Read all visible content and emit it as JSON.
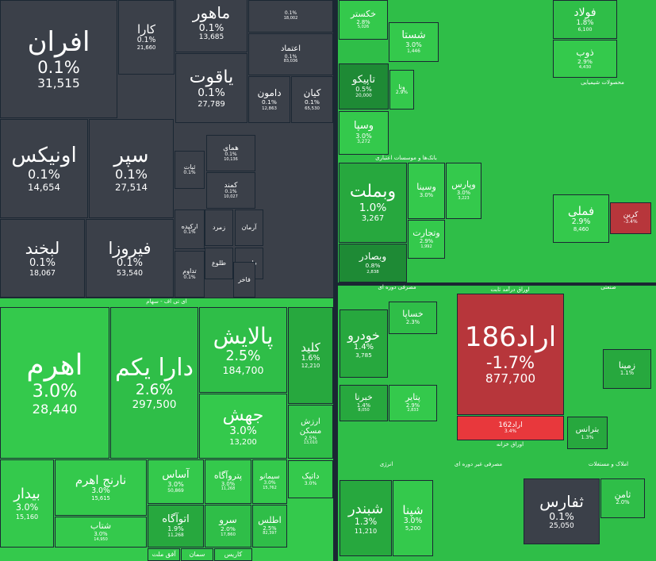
{
  "sections": [
    {
      "label": "ای تی اف - سهام"
    },
    {
      "label": "اوراق درآمد ثابت"
    },
    {
      "label": "مصرفی دوره ای"
    },
    {
      "label": "صنعتی"
    },
    {
      "label": "انرژی"
    },
    {
      "label": "مصرفی غیر دوره ای"
    },
    {
      "label": "املاک و مستغلات"
    },
    {
      "label": "بانک‌ها و موسسات اعتباری"
    },
    {
      "label": "محصولات شیمیایی"
    },
    {
      "label": "اوراق خزانه"
    }
  ],
  "tiles": [
    {
      "name": "افران",
      "change": "0.1%",
      "value": "31,515",
      "color": "#3b4049"
    },
    {
      "name": "کارا",
      "change": "0.1%",
      "value": "21,660",
      "color": "#3b4049"
    },
    {
      "name": "ماهور",
      "change": "0.1%",
      "value": "13,685",
      "color": "#3b4049"
    },
    {
      "change": "0.1%",
      "value": "18,002",
      "color": "#3b4049"
    },
    {
      "name": "اعتماد",
      "change": "0.1%",
      "value": "83,036",
      "color": "#3b4049"
    },
    {
      "name": "یاقوت",
      "change": "0.1%",
      "value": "27,789",
      "color": "#3b4049"
    },
    {
      "name": "دامون",
      "change": "0.1%",
      "value": "12,863",
      "color": "#3b4049"
    },
    {
      "name": "کیان",
      "change": "0.1%",
      "value": "65,530",
      "color": "#3b4049"
    },
    {
      "name": "اونیکس",
      "change": "0.1%",
      "value": "14,654",
      "color": "#3b4049"
    },
    {
      "name": "سپر",
      "change": "0.1%",
      "value": "27,514",
      "color": "#3b4049"
    },
    {
      "name": "لبخند",
      "change": "0.1%",
      "value": "18,067",
      "color": "#3b4049"
    },
    {
      "name": "فیروزا",
      "change": "0.1%",
      "value": "53,540",
      "color": "#3b4049"
    },
    {
      "name": "همای",
      "change": "0.1%",
      "value": "10,136",
      "color": "#3b4049"
    },
    {
      "name": "کمند",
      "change": "0.1%",
      "value": "10,027",
      "color": "#3b4049"
    },
    {
      "name": "ثبات",
      "change": "0.1%",
      "color": "#3b4049"
    },
    {
      "name": "ارکیده",
      "change": "0.1%",
      "color": "#3b4049"
    },
    {
      "name": "زمرد",
      "color": "#3b4049"
    },
    {
      "name": "آرمان",
      "color": "#3b4049"
    },
    {
      "name": "تداوم",
      "change": "0.1%",
      "color": "#3b4049"
    },
    {
      "name": "طلوع",
      "color": "#3b4049"
    },
    {
      "name": "طوبی",
      "color": "#3b4049"
    },
    {
      "name": "فاخر",
      "color": "#3b4049"
    },
    {
      "name": "اهرم",
      "change": "3.0%",
      "value": "28,440",
      "color": "#34c94c"
    },
    {
      "name": "دارا یکم",
      "change": "2.6%",
      "value": "297,500",
      "color": "#2fbe48"
    },
    {
      "name": "پالایش",
      "change": "2.5%",
      "value": "184,700",
      "color": "#2fbe48"
    },
    {
      "name": "جهش",
      "change": "3.0%",
      "value": "13,200",
      "color": "#34c94c"
    },
    {
      "name": "کلید",
      "change": "1.6%",
      "value": "12,210",
      "color": "#27a83e"
    },
    {
      "name": "ارزش مسکن",
      "change": "2.5%",
      "value": "13,010",
      "color": "#2fbe48"
    },
    {
      "name": "بیدار",
      "change": "3.0%",
      "value": "15,160",
      "color": "#34c94c"
    },
    {
      "name": "نارنج اهرم",
      "change": "3.0%",
      "value": "15,615",
      "color": "#34c94c"
    },
    {
      "name": "شتاب",
      "change": "3.0%",
      "value": "14,950",
      "color": "#34c94c"
    },
    {
      "name": "آساس",
      "change": "3.0%",
      "value": "50,869",
      "color": "#34c94c"
    },
    {
      "name": "پتروآگاه",
      "change": "3.0%",
      "value": "11,268",
      "color": "#34c94c"
    },
    {
      "name": "سیمانو",
      "change": "3.0%",
      "value": "15,762",
      "color": "#34c94c"
    },
    {
      "name": "اتوآگاه",
      "change": "1.9%",
      "value": "11,268",
      "color": "#27a83e"
    },
    {
      "name": "سرو",
      "change": "2.0%",
      "value": "17,860",
      "color": "#2fbe48"
    },
    {
      "name": "اطلس",
      "change": "2.5%",
      "value": "82,397",
      "color": "#2fbe48"
    },
    {
      "name": "داتیک",
      "change": "3.0%",
      "color": "#34c94c"
    },
    {
      "name": "آفق ملت",
      "color": "#34c94c"
    },
    {
      "name": "سمان",
      "color": "#34c94c"
    },
    {
      "name": "کاریس",
      "color": "#34c94c"
    },
    {
      "name": "خکستر",
      "change": "2.8%",
      "value": "5,026",
      "color": "#34c94c"
    },
    {
      "name": "شستا",
      "change": "3.0%",
      "value": "1,446",
      "color": "#34c94c"
    },
    {
      "name": "تاپیکو",
      "change": "0.5%",
      "value": "20,000",
      "color": "#1e8a35"
    },
    {
      "name": "ونا",
      "change": "2.9%",
      "color": "#34c94c"
    },
    {
      "name": "وسپا",
      "change": "3.0%",
      "value": "3,272",
      "color": "#34c94c"
    },
    {
      "name": "وبملت",
      "change": "1.0%",
      "value": "3,267",
      "color": "#27a83e"
    },
    {
      "name": "وبصادر",
      "change": "0.8%",
      "value": "2,838",
      "color": "#1e8a35"
    },
    {
      "name": "وسینا",
      "change": "3.0%",
      "color": "#34c94c"
    },
    {
      "name": "وتجارت",
      "change": "2.9%",
      "value": "1,992",
      "color": "#34c94c"
    },
    {
      "name": "وپارس",
      "change": "3.0%",
      "value": "3,223",
      "color": "#34c94c"
    },
    {
      "name": "فولاد",
      "change": "1.8%",
      "value": "6,100",
      "color": "#2fbe48"
    },
    {
      "name": "ذوب",
      "change": "2.9%",
      "value": "4,430",
      "color": "#34c94c"
    },
    {
      "name": "فملی",
      "change": "2.9%",
      "value": "8,460",
      "color": "#34c94c"
    },
    {
      "name": "کرین",
      "change": "-3.4%",
      "color": "#b7363b"
    },
    {
      "name": "اراد186",
      "change": "-1.7%",
      "value": "877,700",
      "color": "#b7363b"
    },
    {
      "name": "اراد162",
      "change": "3.4%",
      "color": "#e8383c"
    },
    {
      "name": "خودرو",
      "change": "1.4%",
      "value": "3,785",
      "color": "#27a83e"
    },
    {
      "name": "خساپا",
      "change": "2.3%",
      "color": "#2fbe48"
    },
    {
      "name": "خبرنا",
      "change": "1.4%",
      "value": "8,050",
      "color": "#27a83e"
    },
    {
      "name": "پتایر",
      "change": "2.9%",
      "value": "2,833",
      "color": "#34c94c"
    },
    {
      "name": "شبندر",
      "change": "1.3%",
      "value": "11,210",
      "color": "#27a83e"
    },
    {
      "name": "شپنا",
      "change": "3.0%",
      "value": "5,200",
      "color": "#34c94c"
    },
    {
      "name": "ثفارس",
      "change": "0.1%",
      "value": "25,050",
      "color": "#3b4049"
    },
    {
      "name": "ثامن",
      "change": "2.0%",
      "color": "#2fbe48"
    },
    {
      "name": "زمینا",
      "change": "1.1%",
      "color": "#27a83e"
    },
    {
      "name": "بترانس",
      "change": "1.3%",
      "color": "#27a83e"
    }
  ]
}
